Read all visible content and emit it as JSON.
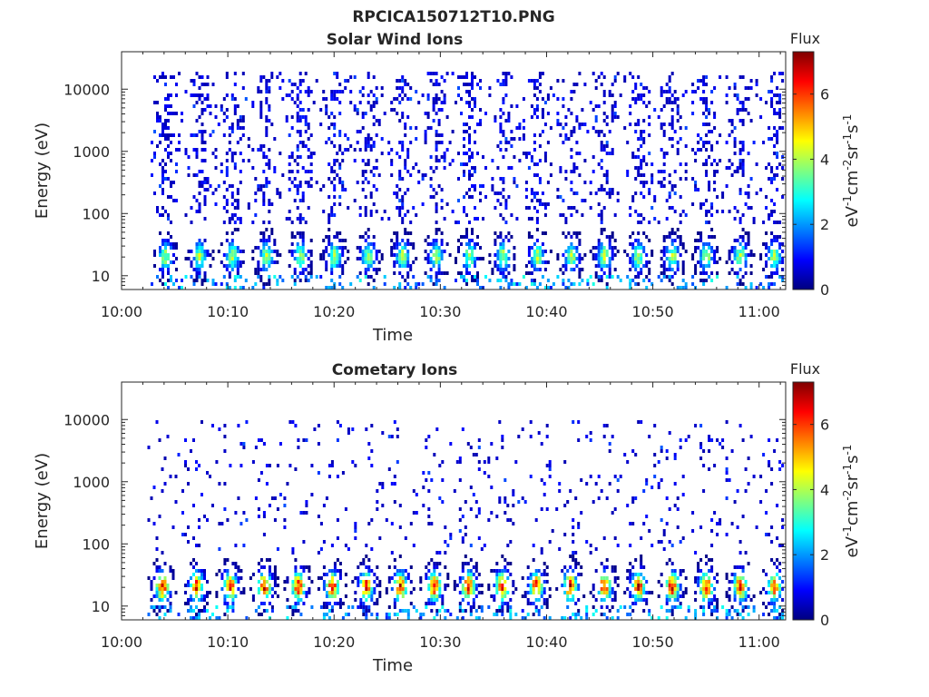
{
  "figure_title": "RPCICA150712T10.PNG",
  "colors": {
    "axis": "#262626",
    "colormap": [
      "#00007f",
      "#0000ff",
      "#007fff",
      "#00ffff",
      "#7fff7f",
      "#ffff00",
      "#ff7f00",
      "#ff0000",
      "#7f0000"
    ]
  },
  "chart_data": [
    {
      "type": "heatmap",
      "title": "Solar Wind Ions",
      "xlabel": "Time",
      "ylabel": "Energy (eV)",
      "x_tick_labels": [
        "10:00",
        "10:10",
        "10:20",
        "10:30",
        "10:40",
        "10:50",
        "11:00"
      ],
      "x_tick_minutes": [
        0,
        10,
        20,
        30,
        40,
        50,
        60
      ],
      "xlim_minutes": [
        0,
        62.5
      ],
      "y_scale": "log",
      "y_tick_labels": [
        "10",
        "100",
        "1000",
        "10000"
      ],
      "y_ticks": [
        10,
        100,
        1000,
        10000
      ],
      "ylim": [
        6,
        40000
      ],
      "colorbar": {
        "label": "Flux",
        "unit": "eV-1cm-2sr-1s-1",
        "ticks": [
          "0",
          "2",
          "4",
          "6"
        ],
        "range": [
          0,
          7.3
        ]
      },
      "sweep_start_minutes": [
        3.5,
        6.7,
        9.8,
        13.0,
        16.2,
        19.4,
        22.6,
        25.8,
        29.0,
        32.1,
        35.3,
        38.5,
        41.7,
        44.8,
        48.0,
        51.2,
        54.4,
        57.6,
        60.8
      ],
      "low_energy_peak_ev": 22,
      "peak_flux": 4.3,
      "high_energy_extent_ev": 20000
    },
    {
      "type": "heatmap",
      "title": "Cometary Ions",
      "xlabel": "Time",
      "ylabel": "Energy (eV)",
      "x_tick_labels": [
        "10:00",
        "10:10",
        "10:20",
        "10:30",
        "10:40",
        "10:50",
        "11:00"
      ],
      "x_tick_minutes": [
        0,
        10,
        20,
        30,
        40,
        50,
        60
      ],
      "xlim_minutes": [
        0,
        62.5
      ],
      "y_scale": "log",
      "y_tick_labels": [
        "10",
        "100",
        "1000",
        "10000"
      ],
      "y_ticks": [
        10,
        100,
        1000,
        10000
      ],
      "ylim": [
        6,
        40000
      ],
      "colorbar": {
        "label": "Flux",
        "unit": "eV-1cm-2sr-1s-1",
        "ticks": [
          "0",
          "2",
          "4",
          "6"
        ],
        "range": [
          0,
          7.3
        ]
      },
      "sweep_start_minutes": [
        3.2,
        6.4,
        9.6,
        12.8,
        16.0,
        19.2,
        22.4,
        25.6,
        28.8,
        32.0,
        35.2,
        38.4,
        41.6,
        44.8,
        48.0,
        51.2,
        54.4,
        57.6,
        60.8
      ],
      "low_energy_peak_ev": 22,
      "peak_flux": 6.8,
      "high_energy_extent_ev": 10000
    }
  ]
}
